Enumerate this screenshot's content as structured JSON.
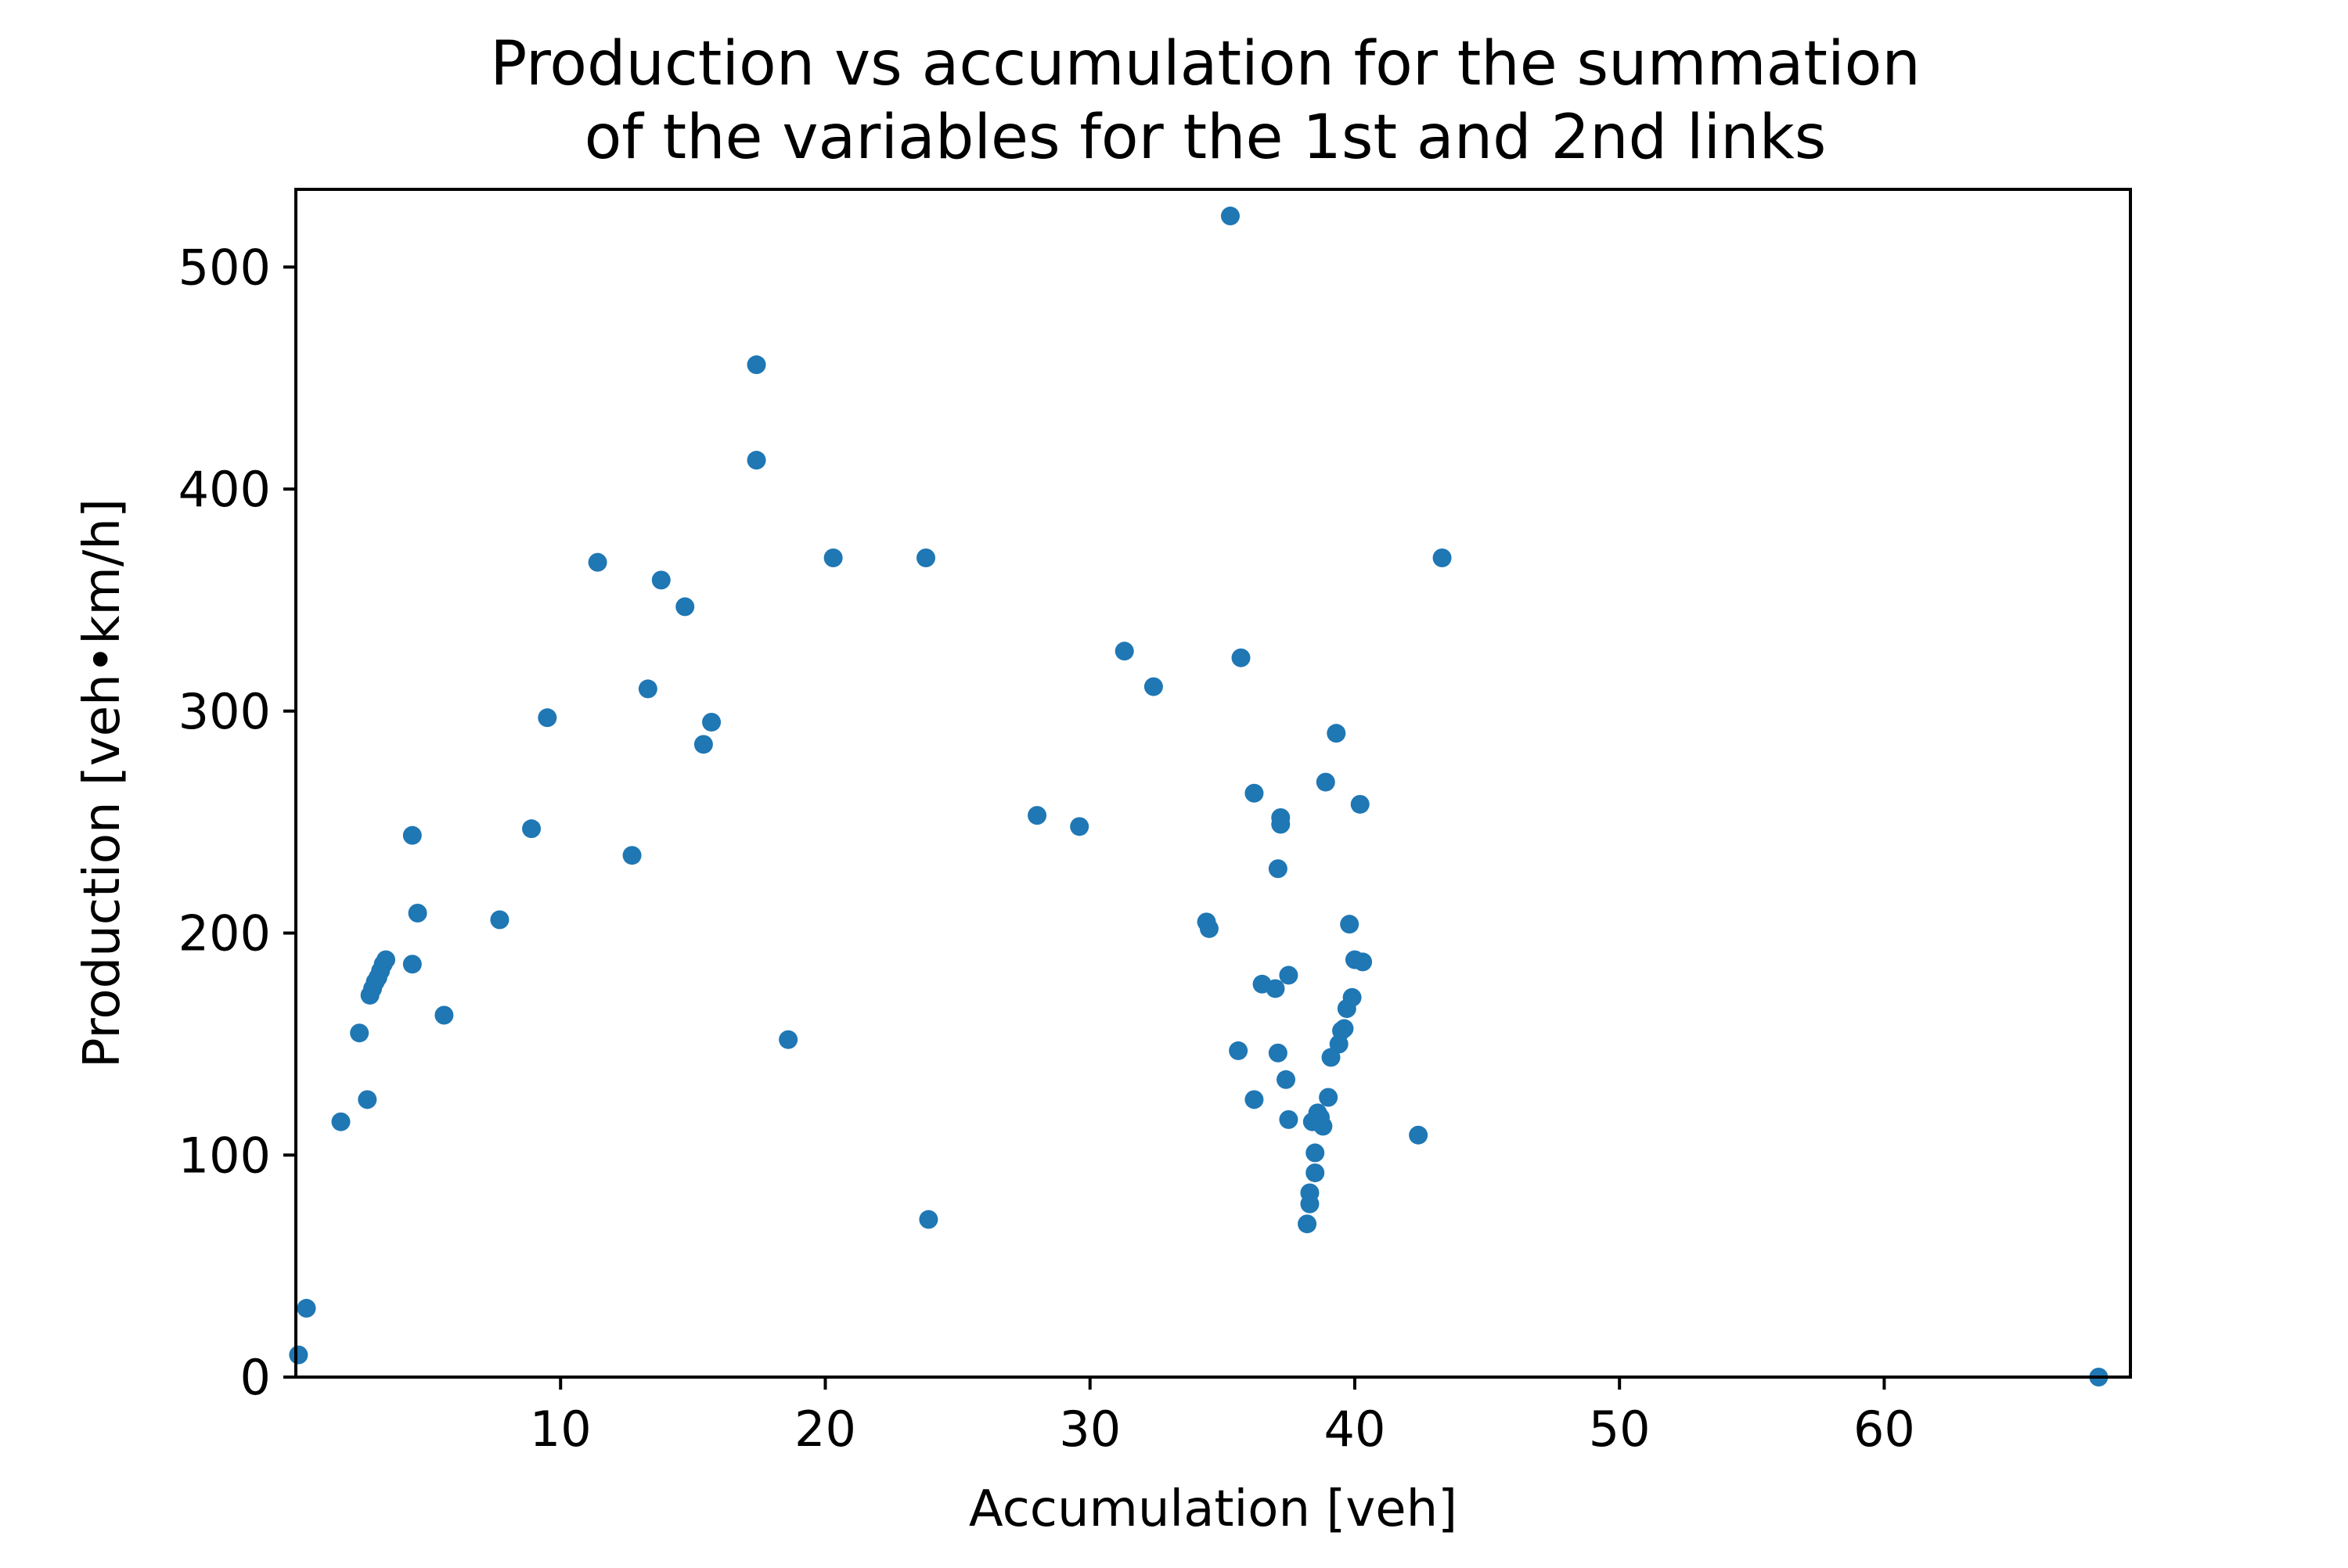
{
  "chart_data": {
    "type": "scatter",
    "title": "Production vs accumulation for the summation\nof the variables for the 1st and 2nd links",
    "xlabel": "Accumulation [veh]",
    "ylabel": "Production [veh•km/h]",
    "xlim": [
      0,
      69.3
    ],
    "ylim": [
      0,
      535
    ],
    "xticks": [
      10,
      20,
      30,
      40,
      50,
      60
    ],
    "yticks": [
      0,
      100,
      200,
      300,
      400,
      500
    ],
    "grid": false,
    "legend": "none",
    "color": "#1f77b4",
    "series": [
      {
        "x": [
          0.1,
          0.4,
          1.7,
          2.4,
          2.7,
          2.8,
          2.9,
          3.0,
          3.1,
          3.2,
          3.3,
          3.4,
          4.4,
          4.4,
          4.6,
          5.6,
          7.7,
          8.9,
          9.5,
          11.4,
          12.7,
          13.3,
          13.8,
          14.7,
          15.4,
          15.7,
          17.4,
          17.4,
          18.6,
          20.3,
          23.8,
          23.9,
          28.0,
          29.6,
          31.3,
          32.4,
          34.4,
          34.5,
          35.3,
          35.6,
          35.7,
          36.2,
          36.2,
          36.5,
          37.0,
          37.1,
          37.1,
          37.2,
          37.2,
          37.4,
          37.5,
          37.5,
          38.2,
          38.3,
          38.3,
          38.4,
          38.5,
          38.5,
          38.6,
          38.7,
          38.8,
          38.9,
          39.0,
          39.1,
          39.3,
          39.4,
          39.5,
          39.6,
          39.7,
          39.8,
          39.9,
          40.0,
          40.2,
          40.3,
          42.4,
          43.3,
          68.1
        ],
        "y": [
          10,
          31,
          115,
          155,
          125,
          172,
          175,
          178,
          180,
          183,
          186,
          188,
          244,
          186,
          209,
          163,
          206,
          247,
          297,
          367,
          235,
          310,
          359,
          347,
          285,
          295,
          456,
          413,
          152,
          369,
          369,
          71,
          253,
          248,
          327,
          311,
          205,
          202,
          523,
          147,
          324,
          263,
          125,
          177,
          175,
          146,
          229,
          252,
          249,
          134,
          181,
          116,
          69,
          78,
          83,
          115,
          92,
          101,
          119,
          117,
          113,
          268,
          126,
          144,
          290,
          150,
          156,
          157,
          166,
          204,
          171,
          188,
          258,
          187,
          109,
          369,
          0
        ]
      }
    ]
  }
}
